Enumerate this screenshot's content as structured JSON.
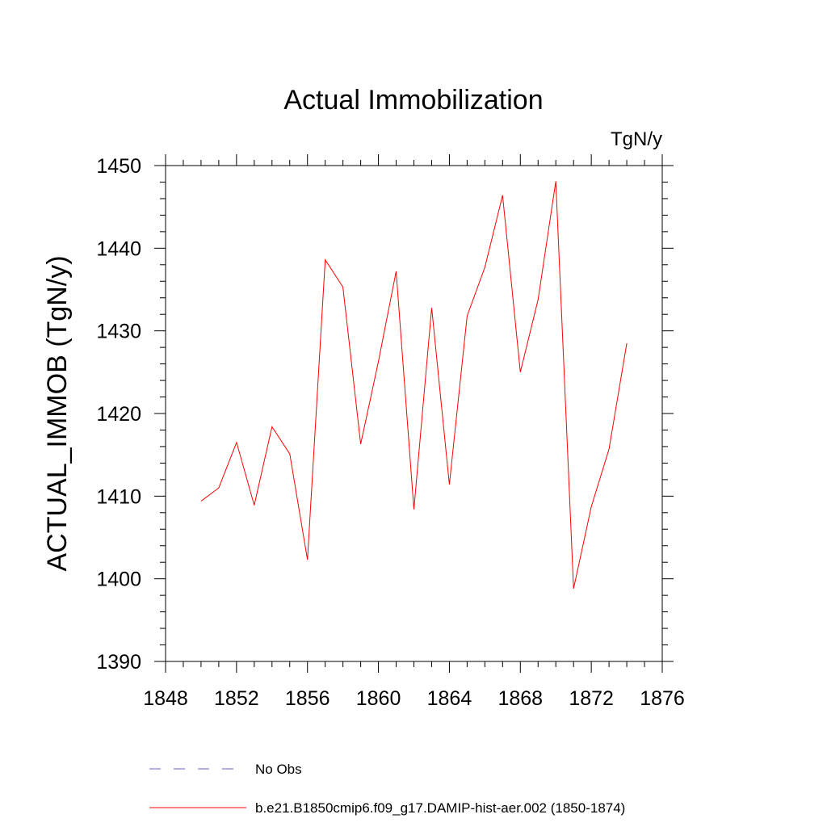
{
  "chart_data": {
    "type": "line",
    "title": "Actual Immobilization",
    "units_label": "TgN/y",
    "ylabel": "ACTUAL_IMMOB  (TgN/y)",
    "xlabel": "",
    "xlim": [
      1848,
      1876
    ],
    "ylim": [
      1390,
      1450
    ],
    "x_ticks": [
      1848,
      1852,
      1856,
      1860,
      1864,
      1868,
      1872,
      1876
    ],
    "y_ticks": [
      1390,
      1400,
      1410,
      1420,
      1430,
      1440,
      1450
    ],
    "grid": false,
    "legend_placement": "bottom",
    "series": [
      {
        "name": "b.e21.B1850cmip6.f09_g17.DAMIP-hist-aer.002 (1850-1874)",
        "color": "#ff0000",
        "style": "solid",
        "x": [
          1850,
          1851,
          1852,
          1853,
          1854,
          1855,
          1856,
          1857,
          1858,
          1859,
          1860,
          1861,
          1862,
          1863,
          1864,
          1865,
          1866,
          1867,
          1868,
          1869,
          1870,
          1871,
          1872,
          1873,
          1874
        ],
        "y": [
          1409.4,
          1411.0,
          1416.5,
          1408.9,
          1418.4,
          1415.1,
          1402.3,
          1438.6,
          1435.3,
          1416.3,
          1426.3,
          1437.2,
          1408.4,
          1432.8,
          1411.4,
          1431.8,
          1437.7,
          1446.4,
          1425.0,
          1433.8,
          1448.1,
          1398.8,
          1408.7,
          1415.7,
          1428.5
        ]
      }
    ],
    "legend": [
      {
        "label": "No Obs",
        "color": "#6a5acd",
        "style": "dashed"
      },
      {
        "label": "b.e21.B1850cmip6.f09_g17.DAMIP-hist-aer.002 (1850-1874)",
        "color": "#ff0000",
        "style": "solid"
      }
    ]
  }
}
